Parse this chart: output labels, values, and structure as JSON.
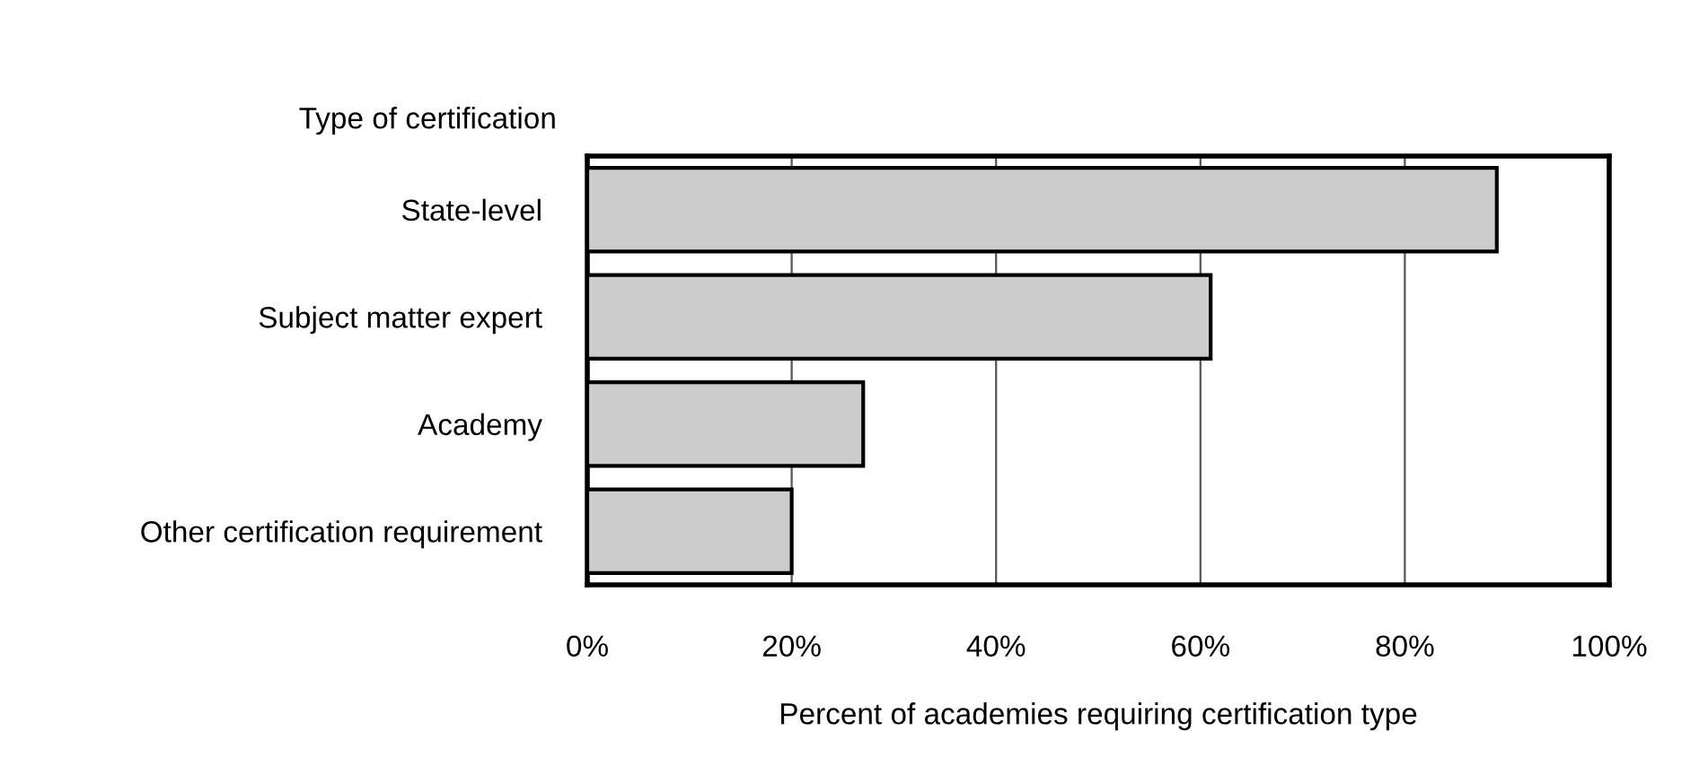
{
  "chart_data": {
    "type": "bar",
    "orientation": "horizontal",
    "ylabel": "Type of certification",
    "xlabel": "Percent of academies requiring certification type",
    "categories": [
      "State-level",
      "Subject matter expert",
      "Academy",
      "Other certification requirement"
    ],
    "values": [
      89,
      61,
      27,
      20
    ],
    "color": "#cccccc",
    "xlim": [
      0,
      100
    ],
    "xticks": [
      {
        "value": 0,
        "label": "0%"
      },
      {
        "value": 20,
        "label": "20%"
      },
      {
        "value": 40,
        "label": "40%"
      },
      {
        "value": 60,
        "label": "60%"
      },
      {
        "value": 80,
        "label": "80%"
      },
      {
        "value": 100,
        "label": "100%"
      }
    ],
    "grid": "x",
    "legend": false
  }
}
